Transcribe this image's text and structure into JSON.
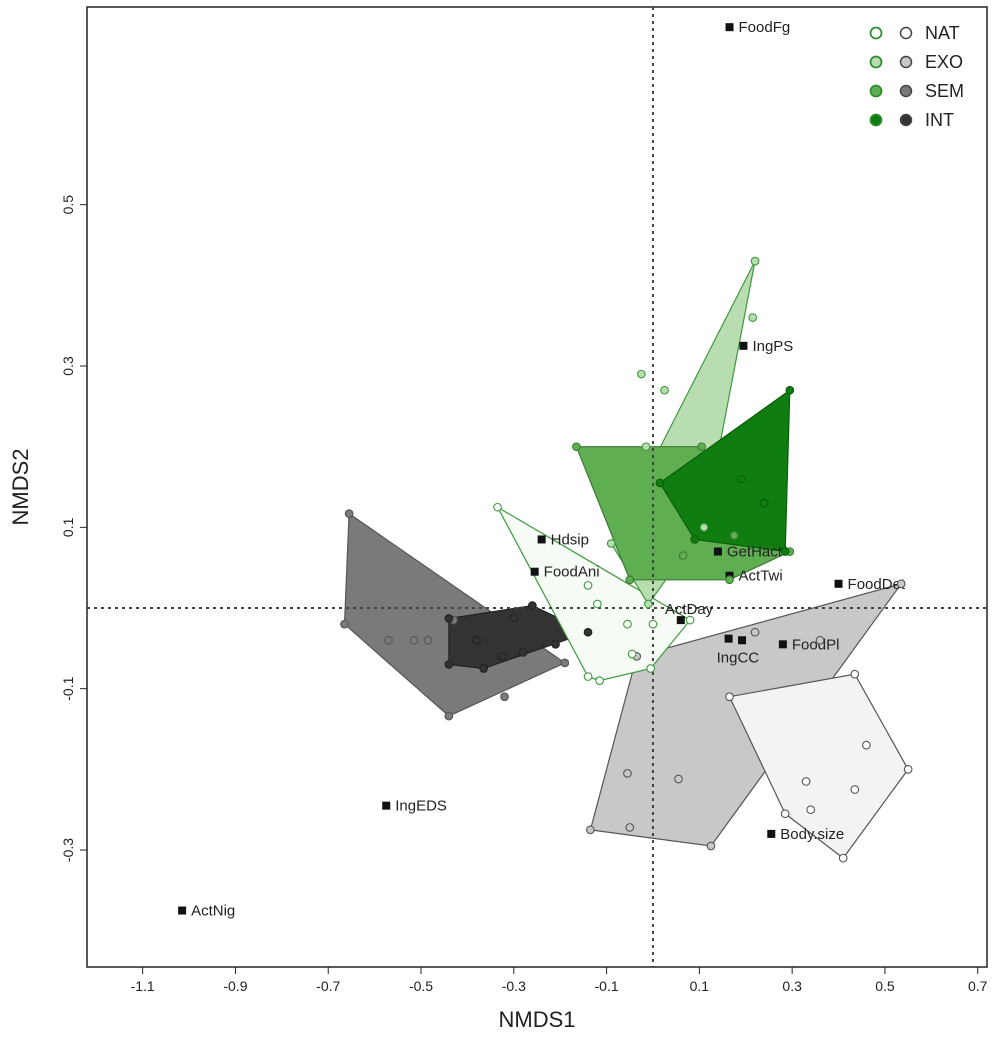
{
  "chart_data": {
    "type": "scatter",
    "xlabel": "NMDS1",
    "ylabel": "NMDS2",
    "xlim": [
      -1.22,
      0.72
    ],
    "ylim": [
      -0.445,
      0.745
    ],
    "x_ticks": [
      -1.1,
      -0.9,
      -0.7,
      -0.5,
      -0.3,
      -0.1,
      0.1,
      0.3,
      0.5,
      0.7
    ],
    "y_ticks": [
      -0.3,
      -0.1,
      0.1,
      0.3,
      0.5
    ],
    "x_tick_labels": [
      "-1.1",
      "-0.9",
      "-0.7",
      "-0.5",
      "-0.3",
      "-0.1",
      "0.1",
      "0.3",
      "0.5",
      "0.7"
    ],
    "y_tick_labels": [
      "-0.3",
      "-0.1",
      "0.1",
      "0.3",
      "0.5"
    ],
    "reference_lines": {
      "x": 0,
      "y": 0
    },
    "legend": {
      "position": "top-right",
      "entries": [
        {
          "label": "NAT",
          "green": "#ffffff",
          "grey": "#ffffff"
        },
        {
          "label": "EXO",
          "green": "#b8ddb0",
          "grey": "#c8c8c8"
        },
        {
          "label": "SEM",
          "green": "#5fae52",
          "grey": "#7a7a7a"
        },
        {
          "label": "INT",
          "green": "#0f7d0f",
          "grey": "#333333"
        }
      ]
    },
    "groups": [
      {
        "name": "SEM-grey",
        "fill": "#7a7a7a",
        "stroke": "#555555",
        "point_fill": "#7a7a7a",
        "hull": [
          [
            -0.655,
            0.117
          ],
          [
            -0.19,
            -0.068
          ],
          [
            -0.44,
            -0.134
          ],
          [
            -0.665,
            -0.02
          ]
        ],
        "points": [
          [
            -0.655,
            0.117
          ],
          [
            -0.665,
            -0.02
          ],
          [
            -0.44,
            -0.134
          ],
          [
            -0.19,
            -0.068
          ],
          [
            -0.32,
            -0.11
          ],
          [
            -0.57,
            -0.04
          ],
          [
            -0.515,
            -0.04
          ],
          [
            -0.485,
            -0.04
          ],
          [
            -0.43,
            -0.015
          ]
        ]
      },
      {
        "name": "INT-grey",
        "fill": "#333333",
        "stroke": "#222222",
        "point_fill": "#333333",
        "hull": [
          [
            -0.44,
            -0.013
          ],
          [
            -0.26,
            0.003
          ],
          [
            -0.14,
            -0.03
          ],
          [
            -0.365,
            -0.075
          ],
          [
            -0.44,
            -0.07
          ]
        ],
        "points": [
          [
            -0.44,
            -0.013
          ],
          [
            -0.26,
            0.003
          ],
          [
            -0.14,
            -0.03
          ],
          [
            -0.365,
            -0.075
          ],
          [
            -0.44,
            -0.07
          ],
          [
            -0.325,
            -0.06
          ],
          [
            -0.28,
            -0.055
          ],
          [
            -0.21,
            -0.045
          ],
          [
            -0.3,
            -0.012
          ],
          [
            -0.38,
            -0.04
          ]
        ]
      },
      {
        "name": "EXO-grey",
        "fill": "#c8c8c8",
        "stroke": "#555555",
        "point_fill": "#c8c8c8",
        "hull": [
          [
            0.535,
            0.03
          ],
          [
            0.125,
            -0.295
          ],
          [
            -0.135,
            -0.275
          ],
          [
            -0.035,
            -0.06
          ]
        ],
        "points": [
          [
            0.535,
            0.03
          ],
          [
            0.125,
            -0.295
          ],
          [
            -0.135,
            -0.275
          ],
          [
            -0.035,
            -0.06
          ],
          [
            -0.055,
            -0.205
          ],
          [
            0.055,
            -0.212
          ],
          [
            0.22,
            -0.03
          ],
          [
            0.36,
            -0.04
          ],
          [
            -0.05,
            -0.272
          ]
        ]
      },
      {
        "name": "NAT-grey",
        "fill": "#f3f3f3",
        "stroke": "#555555",
        "point_fill": "#ffffff",
        "hull": [
          [
            0.165,
            -0.11
          ],
          [
            0.435,
            -0.082
          ],
          [
            0.55,
            -0.2
          ],
          [
            0.41,
            -0.31
          ],
          [
            0.285,
            -0.255
          ]
        ],
        "points": [
          [
            0.165,
            -0.11
          ],
          [
            0.435,
            -0.082
          ],
          [
            0.55,
            -0.2
          ],
          [
            0.41,
            -0.31
          ],
          [
            0.285,
            -0.255
          ],
          [
            0.46,
            -0.17
          ],
          [
            0.33,
            -0.215
          ],
          [
            0.34,
            -0.25
          ],
          [
            0.435,
            -0.225
          ]
        ]
      },
      {
        "name": "NAT-green",
        "fill": "#f6fbf5",
        "stroke": "#3d9a3d",
        "point_fill": "#ffffff",
        "hull": [
          [
            -0.335,
            0.125
          ],
          [
            0.08,
            -0.015
          ],
          [
            -0.005,
            -0.075
          ],
          [
            -0.115,
            -0.09
          ],
          [
            -0.14,
            -0.085
          ]
        ],
        "points": [
          [
            -0.335,
            0.125
          ],
          [
            0.08,
            -0.015
          ],
          [
            -0.005,
            -0.075
          ],
          [
            -0.115,
            -0.09
          ],
          [
            -0.14,
            -0.085
          ],
          [
            -0.12,
            0.005
          ],
          [
            -0.14,
            0.028
          ],
          [
            -0.055,
            -0.02
          ],
          [
            -0.045,
            -0.057
          ],
          [
            0.0,
            -0.02
          ]
        ]
      },
      {
        "name": "EXO-green",
        "fill": "#b8ddb0",
        "stroke": "#3d9a3d",
        "point_fill": "#b8ddb0",
        "hull": [
          [
            0.22,
            0.43
          ],
          [
            0.11,
            0.1
          ],
          [
            -0.01,
            0.005
          ],
          [
            -0.09,
            0.08
          ]
        ],
        "points": [
          [
            0.22,
            0.43
          ],
          [
            0.215,
            0.36
          ],
          [
            0.11,
            0.1
          ],
          [
            -0.01,
            0.005
          ],
          [
            -0.09,
            0.08
          ],
          [
            -0.025,
            0.29
          ],
          [
            0.025,
            0.27
          ],
          [
            -0.015,
            0.2
          ]
        ]
      },
      {
        "name": "SEM-green",
        "fill": "#5fae52",
        "stroke": "#3d7a35",
        "point_fill": "#5fae52",
        "hull": [
          [
            -0.165,
            0.2
          ],
          [
            0.105,
            0.2
          ],
          [
            0.295,
            0.07
          ],
          [
            0.165,
            0.035
          ],
          [
            -0.05,
            0.035
          ]
        ],
        "points": [
          [
            -0.165,
            0.2
          ],
          [
            0.105,
            0.2
          ],
          [
            0.295,
            0.07
          ],
          [
            0.165,
            0.035
          ],
          [
            -0.05,
            0.035
          ],
          [
            0.065,
            0.065
          ],
          [
            0.175,
            0.09
          ]
        ]
      },
      {
        "name": "INT-green",
        "fill": "#0f7d0f",
        "stroke": "#0a5e0a",
        "point_fill": "#0f7d0f",
        "hull": [
          [
            0.015,
            0.155
          ],
          [
            0.295,
            0.27
          ],
          [
            0.285,
            0.07
          ],
          [
            0.09,
            0.085
          ]
        ],
        "points": [
          [
            0.015,
            0.155
          ],
          [
            0.295,
            0.27
          ],
          [
            0.285,
            0.07
          ],
          [
            0.09,
            0.085
          ],
          [
            0.19,
            0.16
          ],
          [
            0.24,
            0.13
          ]
        ]
      }
    ],
    "variables": [
      {
        "label": "FoodFg",
        "x": 0.165,
        "y": 0.72
      },
      {
        "label": "IngPS",
        "x": 0.195,
        "y": 0.325
      },
      {
        "label": "Hdsip",
        "x": -0.24,
        "y": 0.085
      },
      {
        "label": "GetHact",
        "x": 0.14,
        "y": 0.07
      },
      {
        "label": "FoodAni",
        "x": -0.255,
        "y": 0.045
      },
      {
        "label": "ActTwi",
        "x": 0.165,
        "y": 0.04
      },
      {
        "label": "FoodDet",
        "x": 0.4,
        "y": 0.03
      },
      {
        "label": "ActDay",
        "x": 0.06,
        "y": -0.015
      },
      {
        "label": "IngCC",
        "x": 0.163,
        "y": -0.038
      },
      {
        "label": "",
        "x": 0.192,
        "y": -0.04
      },
      {
        "label": "FoodPl",
        "x": 0.28,
        "y": -0.045
      },
      {
        "label": "IngEDS",
        "x": -0.575,
        "y": -0.245
      },
      {
        "label": "Body.size",
        "x": 0.255,
        "y": -0.28
      },
      {
        "label": "ActNig",
        "x": -1.015,
        "y": -0.375
      }
    ]
  }
}
